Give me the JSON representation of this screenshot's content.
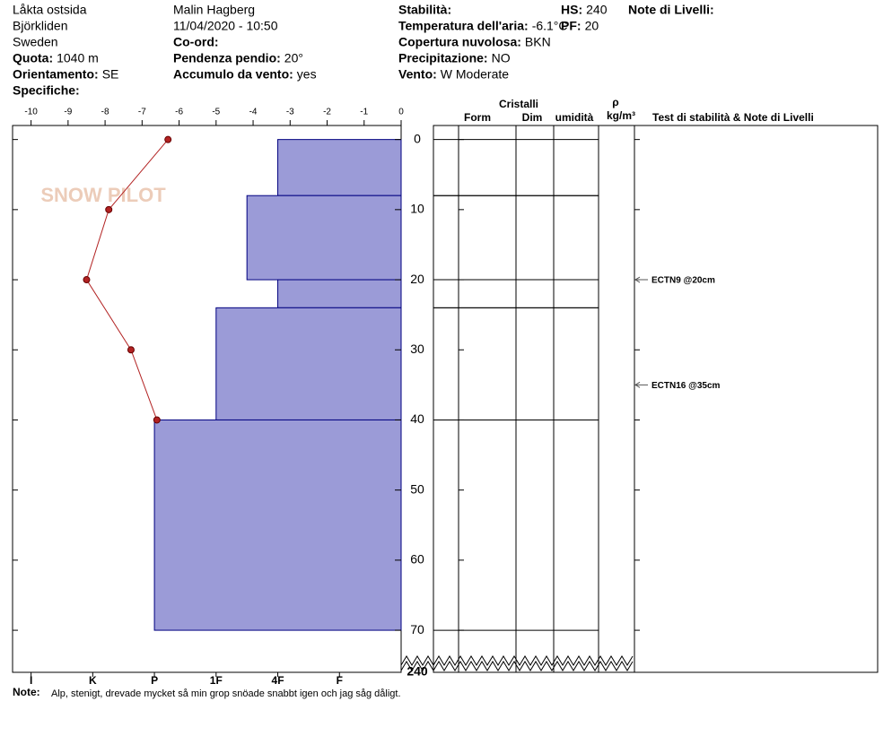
{
  "header": {
    "location": [
      "Låkta ostsida",
      "Björkliden",
      "Sweden"
    ],
    "observer": "Malin Hagberg",
    "datetime": "11/04/2020 - 10:50",
    "fields": [
      {
        "label": "Quota:",
        "value": "1040 m"
      },
      {
        "label": "Orientamento:",
        "value": "SE"
      },
      {
        "label": "Specifiche:"
      },
      {
        "label": "Co-ord:"
      },
      {
        "label": "Pendenza pendio:",
        "value": "20°"
      },
      {
        "label": "Accumulo da vento:",
        "value": "yes"
      },
      {
        "label": "Stabilità:"
      },
      {
        "label": "Temperatura dell'aria:",
        "value": "-6.1°C"
      },
      {
        "label": "Copertura nuvolosa:",
        "value": "BKN"
      },
      {
        "label": "Precipitazione:",
        "value": "NO"
      },
      {
        "label": "Vento:",
        "value": "W Moderate"
      },
      {
        "label": "HS:",
        "value": "240"
      },
      {
        "label": "PF:",
        "value": "20"
      },
      {
        "label": "Note di Livelli:"
      }
    ],
    "note_label": "Note:",
    "note": "Alp, stenigt, drevade mycket så min grop snöade snabbt igen och jag såg dåligt.",
    "logo": "SNOW PILOT"
  },
  "chart_data": {
    "type": "snow-profile",
    "ylim": [
      -2,
      76
    ],
    "yticks": [
      0,
      10,
      20,
      30,
      40,
      50,
      60,
      70
    ],
    "ground_label": 240,
    "temperature": {
      "xlim": [
        -10.5,
        0
      ],
      "xticks": [
        -10,
        -9,
        -8,
        -7,
        -6,
        -5,
        -4,
        -3,
        -2,
        -1,
        0
      ],
      "depth": [
        0,
        10,
        20,
        30,
        40
      ],
      "values": [
        -6.3,
        -7.9,
        -8.5,
        -7.3,
        -6.6
      ],
      "color": "#b22222"
    },
    "hardness": {
      "xlim": [
        0,
        6.3
      ],
      "xticks": [
        {
          "value": 6,
          "label": "I"
        },
        {
          "value": 5,
          "label": "K"
        },
        {
          "value": 4,
          "label": "P"
        },
        {
          "value": 3,
          "label": "1F"
        },
        {
          "value": 2,
          "label": "4F"
        },
        {
          "value": 1,
          "label": "F"
        }
      ],
      "color": "#9b9bd7"
    },
    "layers": [
      {
        "top": 0,
        "bottom": 8,
        "hardness": 2
      },
      {
        "top": 8,
        "bottom": 20,
        "hardness": 2.5
      },
      {
        "top": 20,
        "bottom": 24,
        "hardness": 2
      },
      {
        "top": 24,
        "bottom": 40,
        "hardness": 3
      },
      {
        "top": 40,
        "bottom": 70,
        "hardness": 4
      }
    ],
    "columns": {
      "crystals": "Cristalli",
      "form": "Form",
      "dim": "Dim",
      "moisture": "umidità",
      "rho": "ρ",
      "density_unit": "kg/m³",
      "tests": "Test di stabilità & Note di Livelli"
    },
    "tests": [
      {
        "label": "ECTN9 @20cm",
        "depth": 20
      },
      {
        "label": "ECTN16 @35cm",
        "depth": 35
      }
    ]
  }
}
